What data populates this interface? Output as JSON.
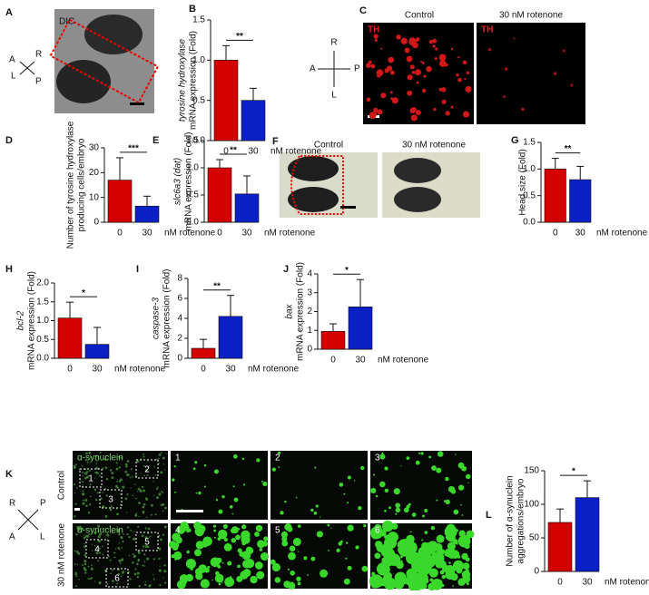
{
  "chart_data": [
    {
      "type": "bar",
      "label": "B",
      "ylabel_gene": "tyrosine hydroxylase",
      "ylabel": [
        "mRNA expression (Fold)"
      ],
      "categories": [
        "0",
        "30"
      ],
      "category_suffix": "nM rotenone",
      "values": [
        1.0,
        0.5
      ],
      "errors": [
        0.18,
        0.15
      ],
      "colors": [
        "#d40000",
        "#0a1fc4"
      ],
      "ylim": [
        0,
        1.5
      ],
      "yticks": [
        {
          "value": 0,
          "label": "0.0"
        },
        {
          "value": 0.5,
          "label": "0.5"
        },
        {
          "value": 1,
          "label": "1.0"
        },
        {
          "value": 1.5,
          "label": "1.5"
        }
      ],
      "significance": "**"
    },
    {
      "type": "bar",
      "label": "D",
      "ylabel": [
        "Number of tyrosine hydroxylase",
        "producing cells/embryo"
      ],
      "categories": [
        "0",
        "30"
      ],
      "category_suffix": "nM rotenone",
      "values": [
        17,
        6.5
      ],
      "errors": [
        9,
        4
      ],
      "colors": [
        "#d40000",
        "#0a1fc4"
      ],
      "ylim": [
        0,
        30
      ],
      "yticks": [
        0,
        10,
        20,
        30
      ],
      "significance": "***"
    },
    {
      "type": "bar",
      "label": "E",
      "ylabel_gene": "slc6a3 (dat)",
      "ylabel": [
        "mRNA expression (Fold)"
      ],
      "categories": [
        "0",
        "30"
      ],
      "category_suffix": "nM rotenone",
      "values": [
        1.0,
        0.52
      ],
      "errors": [
        0.15,
        0.33
      ],
      "colors": [
        "#d40000",
        "#0a1fc4"
      ],
      "ylim": [
        0,
        1.5
      ],
      "yticks": [
        {
          "value": 0,
          "label": "0.0"
        },
        {
          "value": 0.5,
          "label": "0.5"
        },
        {
          "value": 1,
          "label": "1.0"
        },
        {
          "value": 1.5,
          "label": "1.5"
        }
      ],
      "significance": "**"
    },
    {
      "type": "bar",
      "label": "G",
      "ylabel": [
        "Head size (Fold)"
      ],
      "categories": [
        "0",
        "30"
      ],
      "category_suffix": "nM rotenone",
      "values": [
        1.0,
        0.8
      ],
      "errors": [
        0.2,
        0.25
      ],
      "colors": [
        "#d40000",
        "#0a1fc4"
      ],
      "ylim": [
        0,
        1.5
      ],
      "yticks": [
        {
          "value": 0,
          "label": "0.0"
        },
        {
          "value": 0.5,
          "label": "0.5"
        },
        {
          "value": 1,
          "label": "1.0"
        },
        {
          "value": 1.5,
          "label": "1.5"
        }
      ],
      "significance": "**"
    },
    {
      "type": "bar",
      "label": "H",
      "ylabel_gene": "bcl-2",
      "ylabel": [
        "mRNA expression (Fold)"
      ],
      "categories": [
        "0",
        "30"
      ],
      "category_suffix": "nM rotenone",
      "values": [
        1.07,
        0.37
      ],
      "errors": [
        0.42,
        0.45
      ],
      "colors": [
        "#d40000",
        "#0a1fc4"
      ],
      "ylim": [
        0,
        2
      ],
      "yticks": [
        {
          "value": 0,
          "label": "0.0"
        },
        {
          "value": 0.5,
          "label": "0.5"
        },
        {
          "value": 1,
          "label": "1.0"
        },
        {
          "value": 1.5,
          "label": "1.5"
        },
        {
          "value": 2,
          "label": "2.0"
        }
      ],
      "significance": "*"
    },
    {
      "type": "bar",
      "label": "I",
      "ylabel_gene": "caspase-3",
      "ylabel": [
        "mRNA expression (Fold)"
      ],
      "categories": [
        "0",
        "30"
      ],
      "category_suffix": "nM rotenone",
      "values": [
        1.0,
        4.2
      ],
      "errors": [
        0.9,
        2.1
      ],
      "colors": [
        "#d40000",
        "#0a1fc4"
      ],
      "ylim": [
        0,
        8
      ],
      "yticks": [
        0,
        2,
        4,
        6,
        8
      ],
      "significance": "**"
    },
    {
      "type": "bar",
      "label": "J",
      "ylabel_gene": "bax",
      "ylabel": [
        "mRNA expression (Fold)"
      ],
      "categories": [
        "0",
        "30"
      ],
      "category_suffix": "nM rotenone",
      "values": [
        0.95,
        2.25
      ],
      "errors": [
        0.4,
        1.45
      ],
      "colors": [
        "#d40000",
        "#0a1fc4"
      ],
      "ylim": [
        0,
        4
      ],
      "yticks": [
        0,
        1,
        2,
        3,
        4
      ],
      "significance": "*"
    },
    {
      "type": "bar",
      "label": "L",
      "ylabel": [
        "Number of α-synuclein",
        "aggregations/embryo"
      ],
      "categories": [
        "0",
        "30"
      ],
      "category_suffix": "nM rotenone",
      "values": [
        73,
        110
      ],
      "errors": [
        20,
        25
      ],
      "colors": [
        "#d40000",
        "#0a1fc4"
      ],
      "ylim": [
        0,
        150
      ],
      "yticks": [
        0,
        50,
        100,
        150
      ],
      "significance": "*"
    }
  ],
  "images": {
    "A": {
      "label": "A",
      "caption": "DIC",
      "axes": [
        "A",
        "R",
        "L",
        "P"
      ]
    },
    "C": {
      "label": "C",
      "titles": [
        "Control",
        "30  nM rotenone"
      ],
      "stain": "TH",
      "axes": [
        "R",
        "A",
        "P",
        "L"
      ]
    },
    "F": {
      "label": "F",
      "titles": [
        "Control",
        "30  nM rotenone"
      ]
    },
    "K": {
      "label": "K",
      "stain": "α-synuclein",
      "rows": [
        "Control",
        "30 nM rotenone"
      ],
      "insets": [
        "1",
        "2",
        "3",
        "4",
        "5",
        "6"
      ],
      "axes": [
        "R",
        "P",
        "A",
        "L"
      ]
    }
  }
}
